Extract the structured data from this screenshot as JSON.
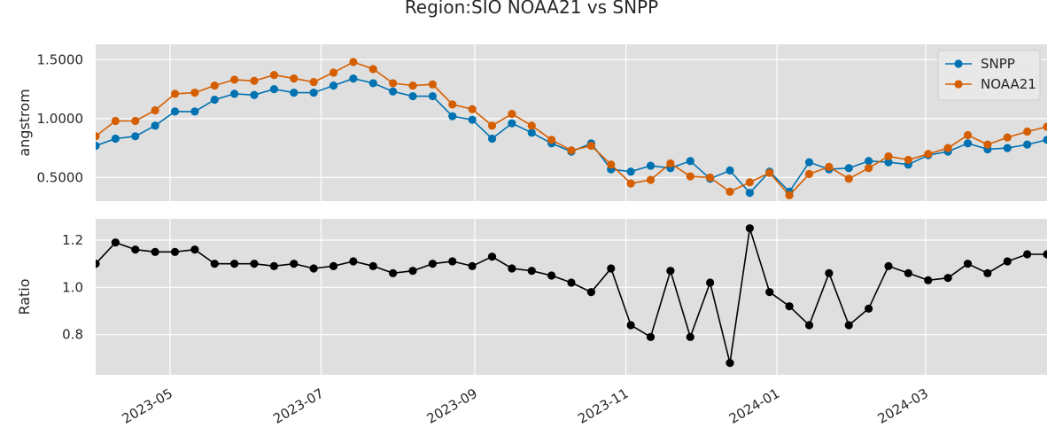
{
  "chart_data": {
    "type": "line",
    "title": "Region:SIO NOAA21 vs SNPP",
    "x": [
      "2023-04-01",
      "2023-04-09",
      "2023-04-17",
      "2023-04-25",
      "2023-05-03",
      "2023-05-11",
      "2023-05-19",
      "2023-05-27",
      "2023-06-04",
      "2023-06-12",
      "2023-06-20",
      "2023-06-28",
      "2023-07-06",
      "2023-07-14",
      "2023-07-22",
      "2023-07-30",
      "2023-08-07",
      "2023-08-15",
      "2023-08-23",
      "2023-08-31",
      "2023-09-08",
      "2023-09-16",
      "2023-09-24",
      "2023-10-02",
      "2023-10-10",
      "2023-10-18",
      "2023-10-26",
      "2023-11-03",
      "2023-11-11",
      "2023-11-19",
      "2023-11-27",
      "2023-12-05",
      "2023-12-13",
      "2023-12-21",
      "2023-12-29",
      "2024-01-06",
      "2024-01-14",
      "2024-01-22",
      "2024-01-30",
      "2024-02-07",
      "2024-02-15",
      "2024-02-23",
      "2024-03-02",
      "2024-03-10",
      "2024-03-18",
      "2024-03-26",
      "2024-04-03",
      "2024-04-11",
      "2024-04-19"
    ],
    "x_ticks": [
      "2023-05-01",
      "2023-07-01",
      "2023-09-01",
      "2023-11-01",
      "2024-01-01",
      "2024-03-01"
    ],
    "x_tick_labels": [
      "2023-05",
      "2023-07",
      "2023-09",
      "2023-11",
      "2024-01",
      "2024-03"
    ],
    "xlim": [
      "2023-04-01",
      "2024-04-19"
    ],
    "legend_placement": "top-right",
    "grid": true,
    "panels": [
      {
        "ylabel": "angstrom",
        "ylim": [
          0.3,
          1.63
        ],
        "yticks": [
          0.5,
          1.0,
          1.5
        ],
        "ytick_labels": [
          "0.5000",
          "1.0000",
          "1.5000"
        ],
        "legend": true,
        "series": [
          {
            "name": "SNPP",
            "color": "#0072B2",
            "values": [
              0.77,
              0.83,
              0.85,
              0.94,
              1.06,
              1.06,
              1.16,
              1.21,
              1.2,
              1.25,
              1.22,
              1.22,
              1.28,
              1.34,
              1.3,
              1.23,
              1.19,
              1.19,
              1.02,
              0.99,
              0.83,
              0.96,
              0.88,
              0.79,
              0.72,
              0.79,
              0.57,
              0.55,
              0.6,
              0.58,
              0.64,
              0.49,
              0.56,
              0.37,
              0.55,
              0.38,
              0.63,
              0.57,
              0.58,
              0.64,
              0.63,
              0.61,
              0.69,
              0.72,
              0.79,
              0.74,
              0.75,
              0.78,
              0.82
            ]
          },
          {
            "name": "NOAA21",
            "color": "#D55E00",
            "values": [
              0.85,
              0.98,
              0.98,
              1.07,
              1.21,
              1.22,
              1.28,
              1.33,
              1.32,
              1.37,
              1.34,
              1.31,
              1.39,
              1.48,
              1.42,
              1.3,
              1.28,
              1.29,
              1.12,
              1.08,
              0.94,
              1.04,
              0.94,
              0.82,
              0.73,
              0.77,
              0.61,
              0.45,
              0.48,
              0.62,
              0.51,
              0.5,
              0.38,
              0.46,
              0.54,
              0.35,
              0.53,
              0.59,
              0.49,
              0.58,
              0.68,
              0.65,
              0.7,
              0.75,
              0.86,
              0.78,
              0.84,
              0.89,
              0.93
            ]
          }
        ]
      },
      {
        "ylabel": "Ratio",
        "ylim": [
          0.63,
          1.29
        ],
        "yticks": [
          0.8,
          1.0,
          1.2
        ],
        "ytick_labels": [
          "0.8",
          "1.0",
          "1.2"
        ],
        "legend": false,
        "series": [
          {
            "name": "",
            "color": "#000000",
            "values": [
              1.1,
              1.19,
              1.16,
              1.15,
              1.15,
              1.16,
              1.1,
              1.1,
              1.1,
              1.09,
              1.1,
              1.08,
              1.09,
              1.11,
              1.09,
              1.06,
              1.07,
              1.1,
              1.11,
              1.09,
              1.13,
              1.08,
              1.07,
              1.05,
              1.02,
              0.98,
              1.08,
              0.84,
              0.79,
              1.07,
              0.79,
              1.02,
              0.68,
              1.25,
              0.98,
              0.92,
              0.84,
              1.06,
              0.84,
              0.91,
              1.09,
              1.06,
              1.03,
              1.04,
              1.1,
              1.06,
              1.11,
              1.14,
              1.14
            ]
          }
        ]
      }
    ]
  }
}
